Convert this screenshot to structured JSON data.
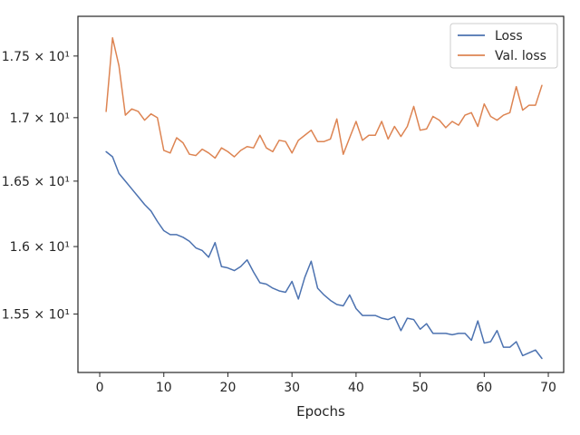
{
  "chart_data": {
    "type": "line",
    "title": "",
    "xlabel": "Epochs",
    "ylabel": "",
    "y_scale": "log",
    "xlim": [
      -3.4,
      72.4
    ],
    "ylim": [
      15.08,
      17.83
    ],
    "grid": false,
    "legend_position": "top-right",
    "x_ticks": [
      0,
      10,
      20,
      30,
      40,
      50,
      60,
      70
    ],
    "x_tick_labels": [
      "0",
      "10",
      "20",
      "30",
      "40",
      "50",
      "60",
      "70"
    ],
    "y_ticks": [
      15.5,
      16.0,
      16.5,
      17.0,
      17.5
    ],
    "y_tick_labels": [
      "1.55 × 10¹",
      "1.6 × 10¹",
      "1.65 × 10¹",
      "1.7 × 10¹",
      "1.75 × 10¹"
    ],
    "x": [
      1,
      2,
      3,
      4,
      5,
      6,
      7,
      8,
      9,
      10,
      11,
      12,
      13,
      14,
      15,
      16,
      17,
      18,
      19,
      20,
      21,
      22,
      23,
      24,
      25,
      26,
      27,
      28,
      29,
      30,
      31,
      32,
      33,
      34,
      35,
      36,
      37,
      38,
      39,
      40,
      41,
      42,
      43,
      44,
      45,
      46,
      47,
      48,
      49,
      50,
      51,
      52,
      53,
      54,
      55,
      56,
      57,
      58,
      59,
      60,
      61,
      62,
      63,
      64,
      65,
      66,
      67,
      68,
      69
    ],
    "series": [
      {
        "name": "Loss",
        "color": "#4c72b0",
        "values": [
          16.73,
          16.69,
          16.56,
          16.5,
          16.44,
          16.38,
          16.32,
          16.27,
          16.19,
          16.12,
          16.09,
          16.09,
          16.07,
          16.04,
          15.99,
          15.97,
          15.92,
          16.03,
          15.85,
          15.84,
          15.82,
          15.85,
          15.9,
          15.81,
          15.73,
          15.72,
          15.69,
          15.67,
          15.66,
          15.74,
          15.61,
          15.77,
          15.89,
          15.69,
          15.64,
          15.6,
          15.57,
          15.56,
          15.64,
          15.54,
          15.49,
          15.49,
          15.49,
          15.47,
          15.46,
          15.48,
          15.38,
          15.47,
          15.46,
          15.39,
          15.43,
          15.36,
          15.36,
          15.36,
          15.35,
          15.36,
          15.36,
          15.31,
          15.45,
          15.29,
          15.3,
          15.38,
          15.26,
          15.26,
          15.3,
          15.2,
          15.22,
          15.24,
          15.18
        ]
      },
      {
        "name": "Val. loss",
        "color": "#dd8452",
        "values": [
          17.05,
          17.65,
          17.42,
          17.02,
          17.07,
          17.05,
          16.98,
          17.03,
          17.0,
          16.74,
          16.72,
          16.84,
          16.8,
          16.71,
          16.7,
          16.75,
          16.72,
          16.68,
          16.76,
          16.73,
          16.69,
          16.74,
          16.77,
          16.76,
          16.86,
          16.76,
          16.73,
          16.82,
          16.81,
          16.72,
          16.82,
          16.86,
          16.9,
          16.81,
          16.81,
          16.83,
          16.99,
          16.71,
          16.84,
          16.97,
          16.82,
          16.86,
          16.86,
          16.97,
          16.83,
          16.93,
          16.85,
          16.93,
          17.09,
          16.9,
          16.91,
          17.01,
          16.98,
          16.92,
          16.97,
          16.94,
          17.02,
          17.04,
          16.93,
          17.11,
          17.01,
          16.98,
          17.02,
          17.04,
          17.25,
          17.06,
          17.1,
          17.1,
          17.26
        ]
      }
    ]
  }
}
